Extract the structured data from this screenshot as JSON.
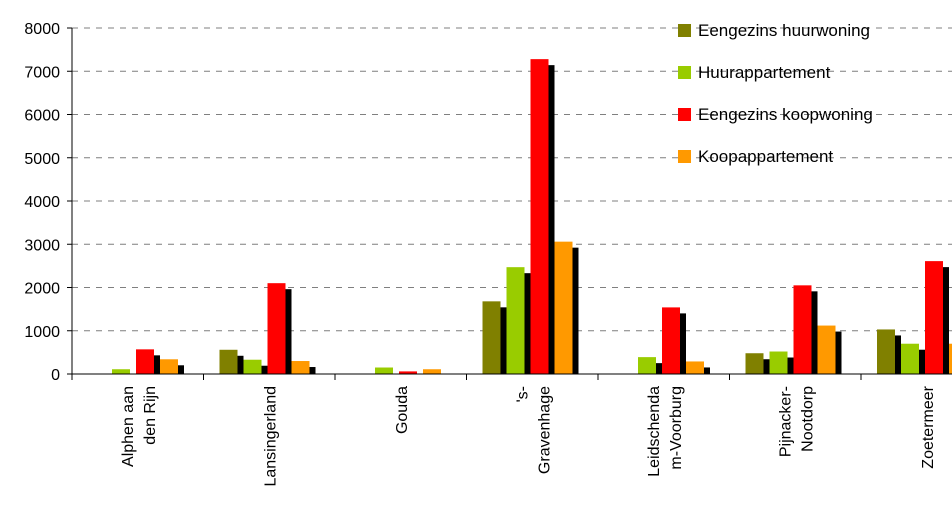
{
  "chart_data": {
    "type": "bar",
    "categories": [
      [
        "Alphen aan",
        "den Rijn"
      ],
      [
        "Lansingerland"
      ],
      [
        "Gouda"
      ],
      [
        "'s-",
        "Gravenhage"
      ],
      [
        "Leidschenda",
        "m-Voorburg"
      ],
      [
        "Pijnacker-",
        "Nootdorp"
      ],
      [
        "Zoetermeer"
      ]
    ],
    "series": [
      {
        "name": "Eengezins huurwoning",
        "color": "#808000",
        "values": [
          0,
          560,
          0,
          1680,
          0,
          480,
          1030
        ]
      },
      {
        "name": "Huurappartement",
        "color": "#99cc00",
        "values": [
          110,
          330,
          150,
          2470,
          390,
          520,
          700
        ]
      },
      {
        "name": "Eengezins koopwoning",
        "color": "#ff0000",
        "values": [
          570,
          2100,
          60,
          7280,
          1540,
          2050,
          2610
        ]
      },
      {
        "name": "Koopappartement",
        "color": "#ff9900",
        "values": [
          340,
          300,
          110,
          3060,
          290,
          1120,
          700
        ]
      }
    ],
    "shadow_color": "#000000",
    "ylim": [
      0,
      8000
    ],
    "yticks": [
      0,
      1000,
      2000,
      3000,
      4000,
      5000,
      6000,
      7000,
      8000
    ],
    "grid": "horizontal-dashed",
    "legend_position": "top-right"
  }
}
